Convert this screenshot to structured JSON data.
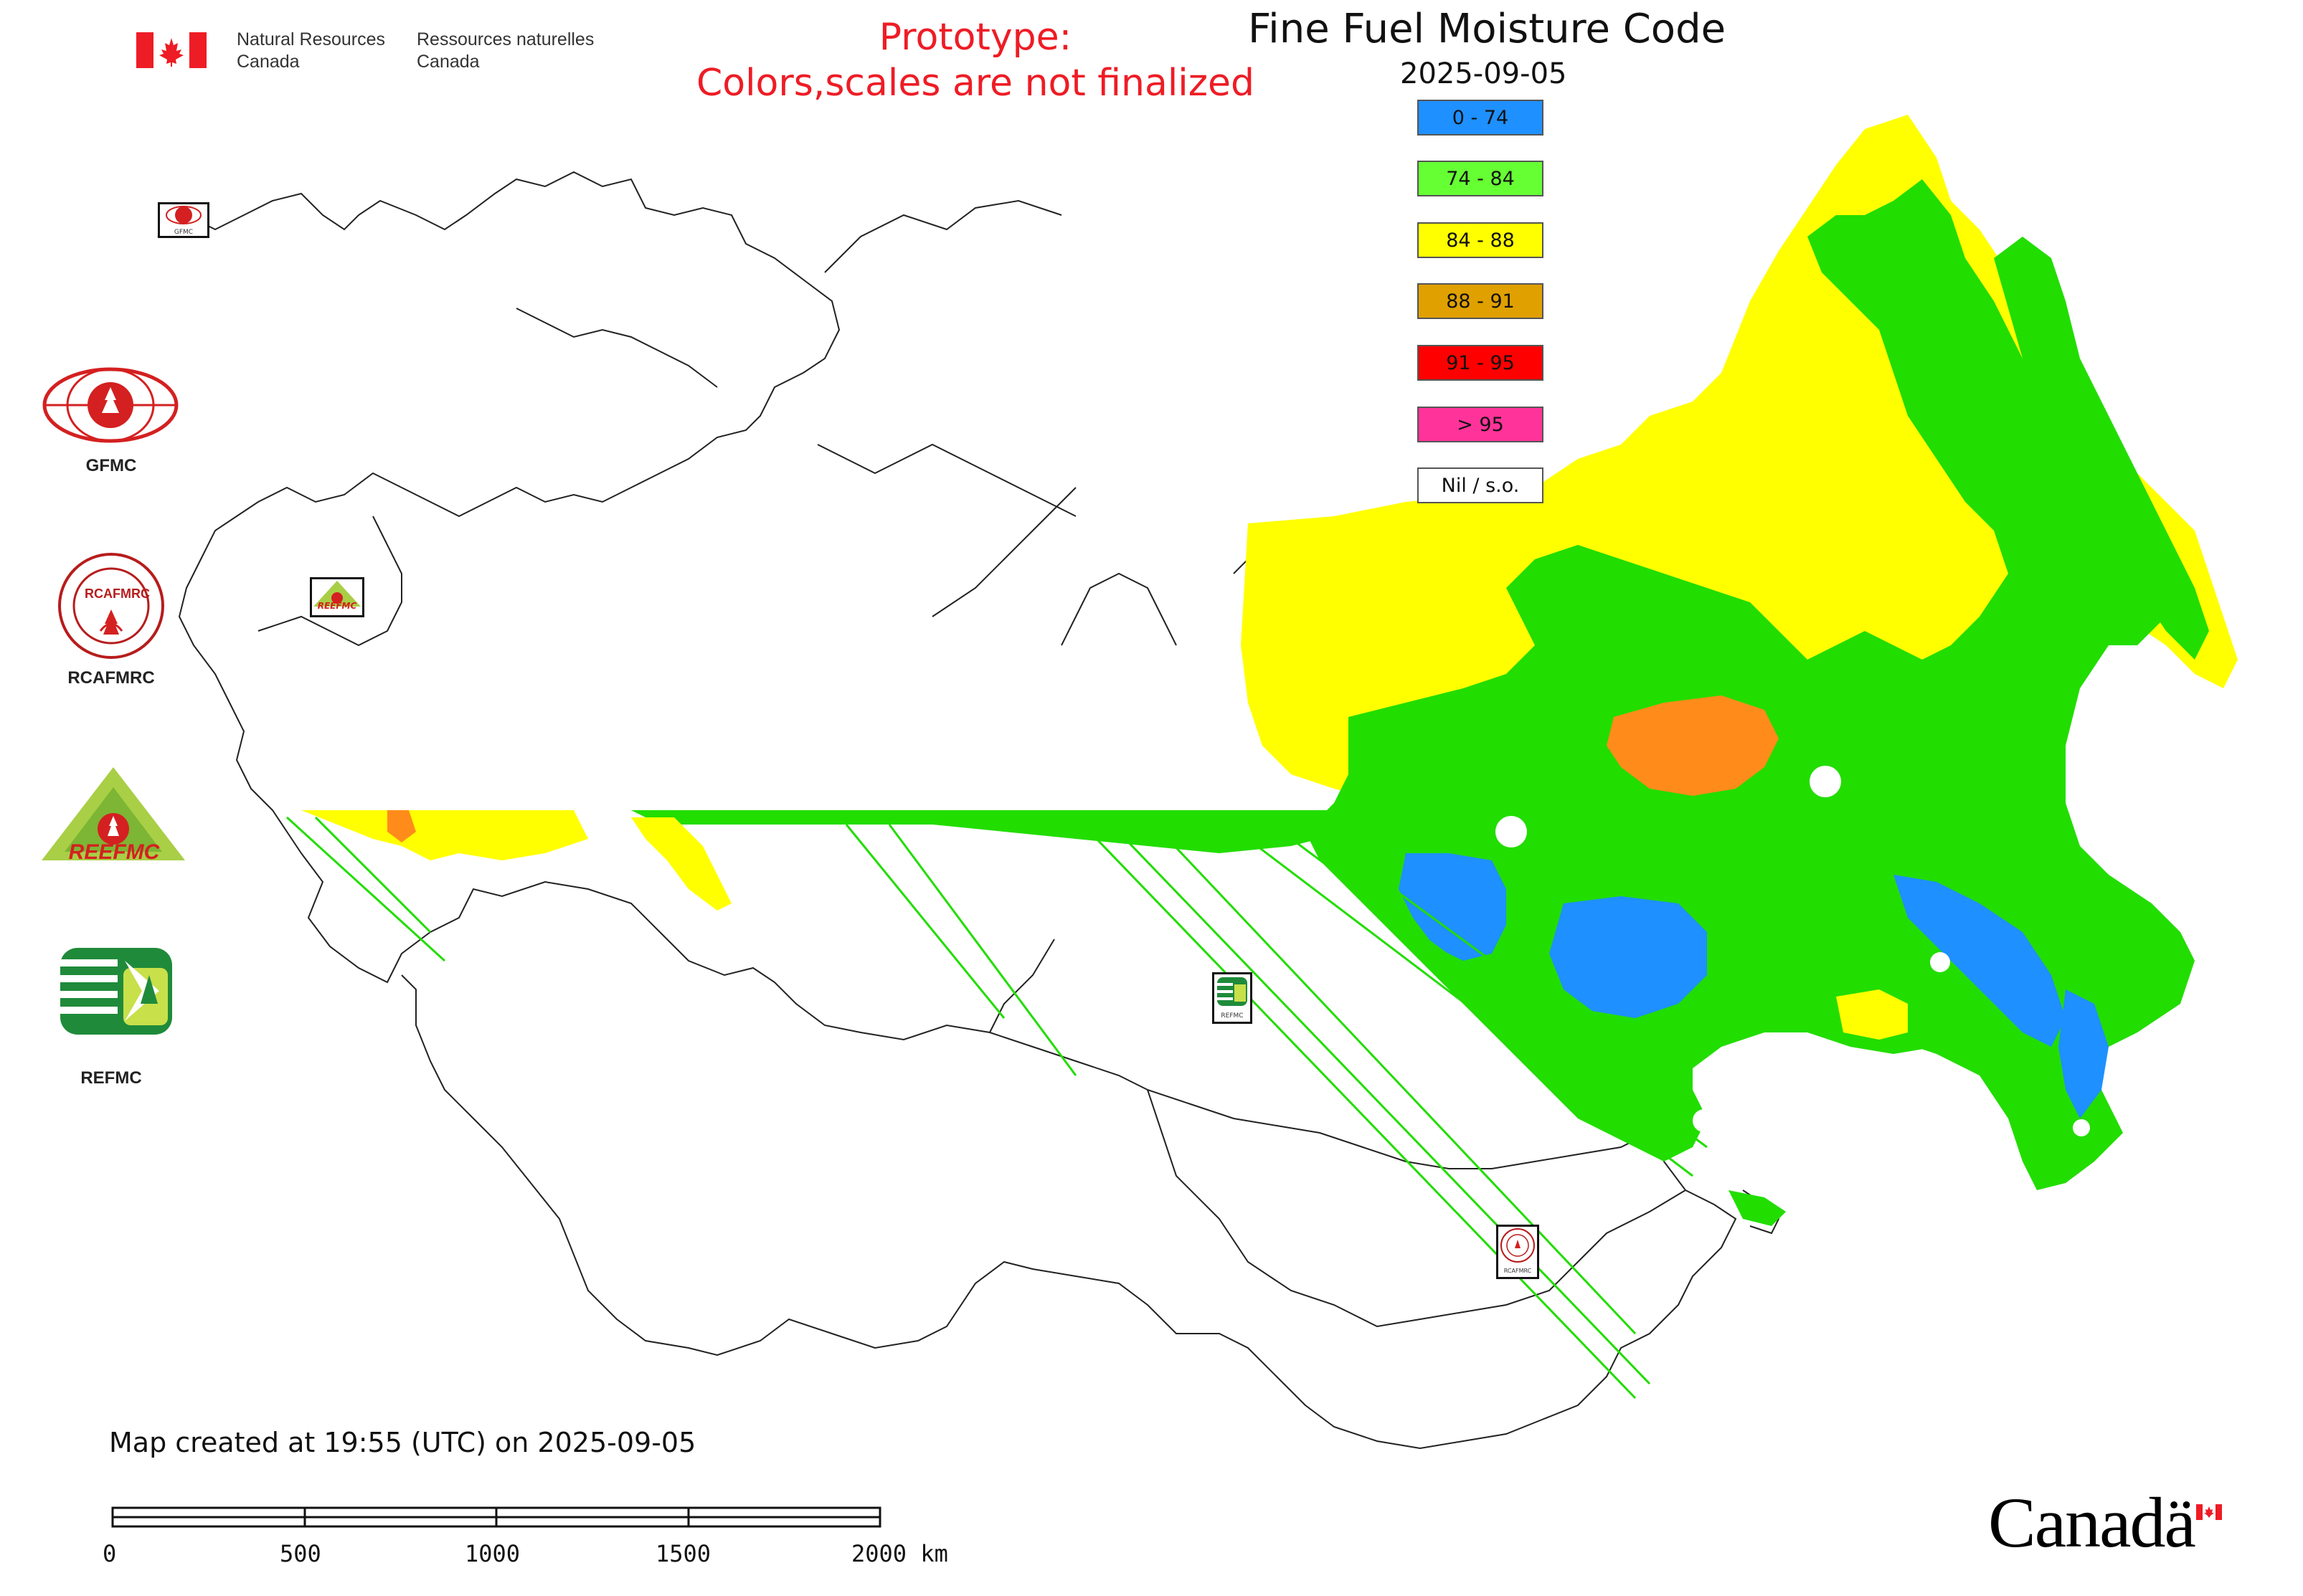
{
  "header": {
    "gov_en_line1": "Natural Resources",
    "gov_en_line2": "Canada",
    "gov_fr_line1": "Ressources naturelles",
    "gov_fr_line2": "Canada",
    "prototype_line1": "Prototype:",
    "prototype_line2": "Colors,scales are not finalized",
    "title": "Fine Fuel Moisture Code",
    "date": "2025-09-05"
  },
  "legend": [
    {
      "label": "0 - 74",
      "color": "#1e90ff"
    },
    {
      "label": "74 - 84",
      "color": "#66ff33"
    },
    {
      "label": "84 - 88",
      "color": "#ffff00"
    },
    {
      "label": "88 - 91",
      "color": "#e0a000"
    },
    {
      "label": "91 - 95",
      "color": "#ff0000"
    },
    {
      "label": "> 95",
      "color": "#ff3399"
    },
    {
      "label": "Nil / s.o.",
      "color": "#ffffff"
    }
  ],
  "logos": {
    "gfmc_label": "GFMC",
    "rcafmrc_label": "RCAFMRC",
    "reefmc_text": "REEFMC",
    "refmc_label": "REFMC",
    "small_gfmc": "GFMC",
    "small_refmc": "REFMC",
    "small_rcafmrc": "RCAFMRC",
    "small_reefmc": "REEFMC"
  },
  "footer": {
    "map_created": "Map created at 19:55 (UTC) on 2025-09-05",
    "scale_ticks": [
      "0",
      "500",
      "1000",
      "1500",
      "2000 km"
    ],
    "wordmark": "Canadä"
  },
  "colors": {
    "fill_low": "#1e90ff",
    "fill_mid": "#22dd00",
    "fill_high": "#ffff00",
    "fill_orange": "#ff8c1a",
    "border": "#222222",
    "prototype_red": "#ee1c25"
  }
}
